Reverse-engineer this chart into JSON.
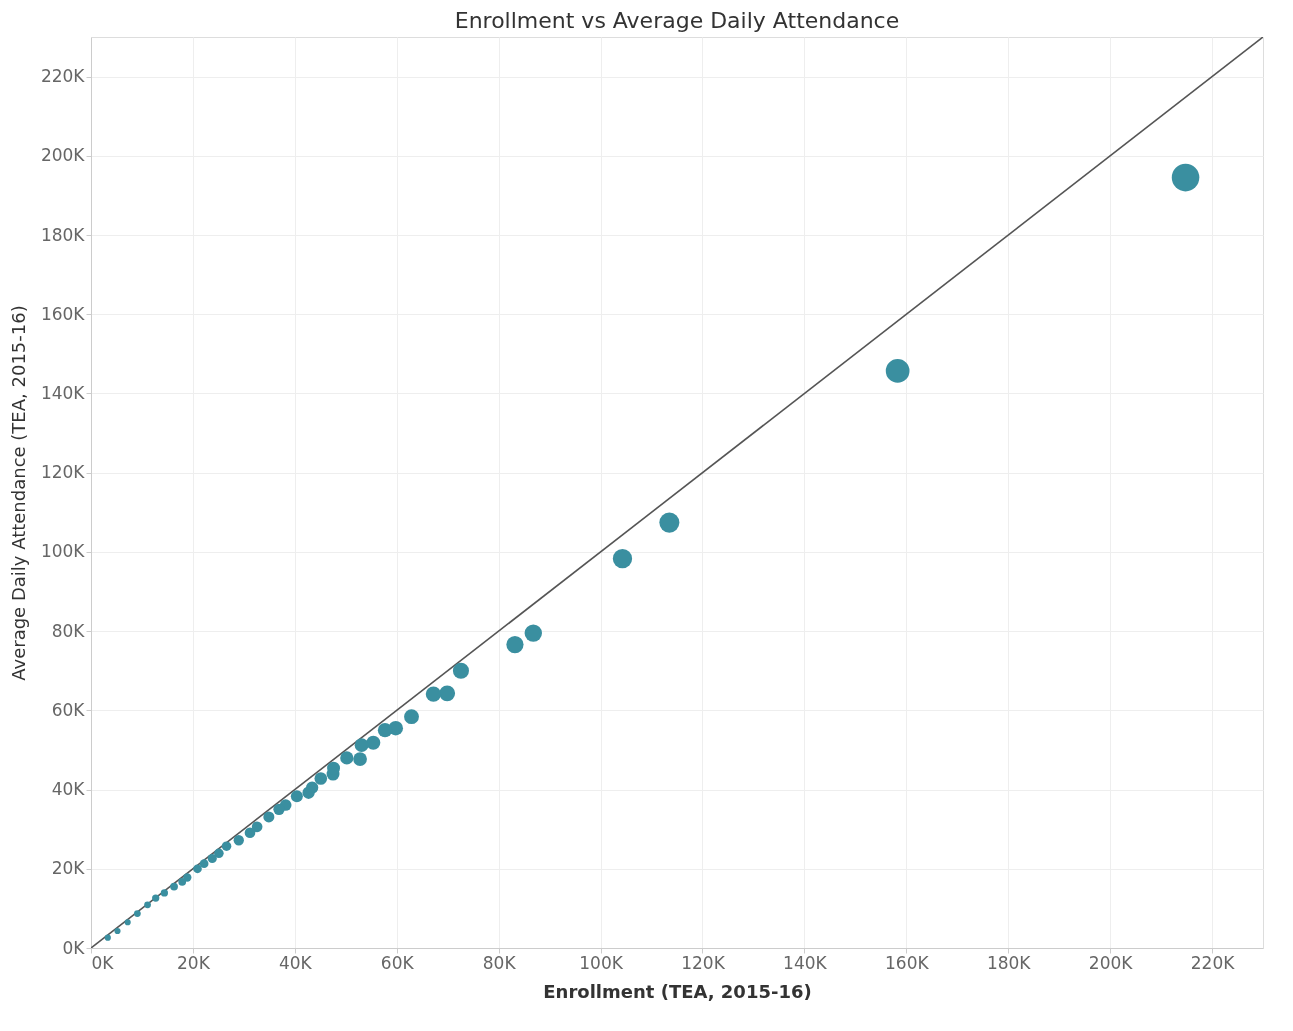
{
  "chart_data": {
    "type": "bubble",
    "title": "Enrollment vs Average Daily Attendance",
    "xlabel": "Enrollment (TEA, 2015-16)",
    "ylabel": "Average Daily Attendance (TEA, 2015-16)",
    "xlim": [
      0,
      230000
    ],
    "ylim": [
      0,
      230000
    ],
    "xticks": [
      {
        "value": 0,
        "label": "0K"
      },
      {
        "value": 20000,
        "label": "20K"
      },
      {
        "value": 40000,
        "label": "40K"
      },
      {
        "value": 60000,
        "label": "60K"
      },
      {
        "value": 80000,
        "label": "80K"
      },
      {
        "value": 100000,
        "label": "100K"
      },
      {
        "value": 120000,
        "label": "120K"
      },
      {
        "value": 140000,
        "label": "140K"
      },
      {
        "value": 160000,
        "label": "160K"
      },
      {
        "value": 180000,
        "label": "180K"
      },
      {
        "value": 200000,
        "label": "200K"
      },
      {
        "value": 220000,
        "label": "220K"
      }
    ],
    "yticks": [
      {
        "value": 0,
        "label": "0K"
      },
      {
        "value": 20000,
        "label": "20K"
      },
      {
        "value": 40000,
        "label": "40K"
      },
      {
        "value": 60000,
        "label": "60K"
      },
      {
        "value": 80000,
        "label": "80K"
      },
      {
        "value": 100000,
        "label": "100K"
      },
      {
        "value": 120000,
        "label": "120K"
      },
      {
        "value": 140000,
        "label": "140K"
      },
      {
        "value": 160000,
        "label": "160K"
      },
      {
        "value": 180000,
        "label": "180K"
      },
      {
        "value": 200000,
        "label": "200K"
      },
      {
        "value": 220000,
        "label": "220K"
      }
    ],
    "grid": true,
    "legend": false,
    "series": [
      {
        "type": "line",
        "color": "#555555",
        "x": [
          0,
          230000
        ],
        "values": [
          0,
          230000
        ]
      },
      {
        "type": "bubble",
        "color": "#3a8fa0",
        "x": [
          214800,
          158300,
          113500,
          104300,
          86800,
          83200,
          72600,
          69900,
          67200,
          62900,
          59800,
          57700,
          55400,
          53100,
          52800,
          50200,
          47500,
          47600,
          45100,
          43400,
          42700,
          40400,
          38200,
          36900,
          34900,
          32600,
          31200,
          29000,
          26600,
          25100,
          23800,
          22200,
          20900,
          18900,
          17900,
          16300,
          14400,
          12700,
          11100,
          9100,
          7200,
          5200,
          3300
        ],
        "values": [
          194500,
          145700,
          107400,
          98300,
          79500,
          76600,
          70000,
          64300,
          64100,
          58400,
          55500,
          55000,
          51800,
          51200,
          47700,
          48000,
          43900,
          45400,
          42800,
          40500,
          39200,
          38300,
          36100,
          35000,
          33100,
          30600,
          29100,
          27200,
          25700,
          23900,
          22600,
          21300,
          20000,
          17800,
          16700,
          15500,
          13900,
          12600,
          10900,
          8700,
          6500,
          4300,
          2600
        ],
        "sizes": [
          1,
          0.74,
          0.53,
          0.49,
          0.4,
          0.39,
          0.34,
          0.33,
          0.31,
          0.29,
          0.28,
          0.27,
          0.26,
          0.25,
          0.25,
          0.23,
          0.22,
          0.22,
          0.21,
          0.2,
          0.2,
          0.19,
          0.18,
          0.17,
          0.16,
          0.15,
          0.15,
          0.14,
          0.12,
          0.12,
          0.11,
          0.1,
          0.1,
          0.09,
          0.08,
          0.08,
          0.07,
          0.07,
          0.06,
          0.06,
          0.05,
          0.05,
          0.05
        ]
      }
    ]
  }
}
